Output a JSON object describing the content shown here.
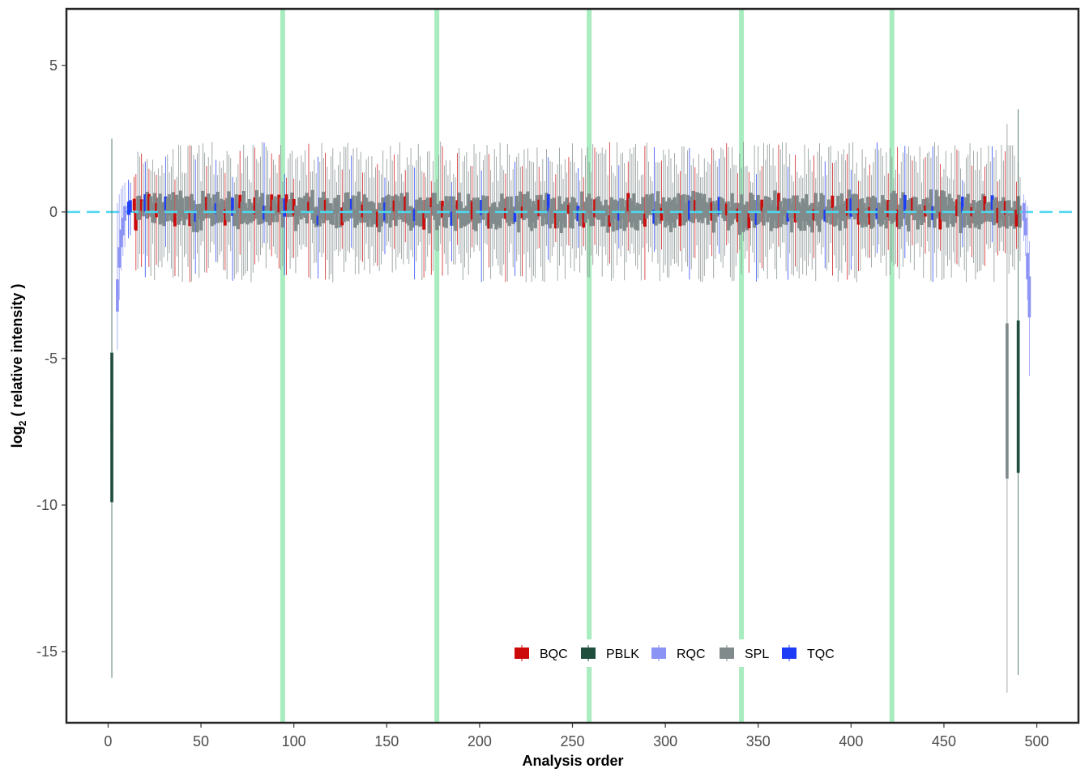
{
  "chart_data": {
    "type": "boxplot",
    "xlabel": "Analysis order",
    "ylabel_main": "log",
    "ylabel_sub": "2",
    "ylabel_rest": " ( relative intensity )",
    "xlim": [
      -22,
      522
    ],
    "ylim": [
      -17.4,
      6.9
    ],
    "x_ticks": [
      0,
      50,
      100,
      150,
      200,
      250,
      300,
      350,
      400,
      450,
      500
    ],
    "x_tick_labels": [
      "0",
      "50",
      "100",
      "150",
      "200",
      "250",
      "300",
      "350",
      "400",
      "450",
      "500"
    ],
    "y_ticks": [
      5,
      0,
      -5,
      -10,
      -15
    ],
    "y_tick_labels": [
      "5",
      "0",
      "-5",
      "-10",
      "-15"
    ],
    "reference_line_y": 0,
    "batch_boundaries_x": [
      94,
      177,
      259,
      341,
      422
    ],
    "legend": [
      {
        "label": "BQC",
        "color": "#cc0a0a"
      },
      {
        "label": "PBLK",
        "color": "#1f4e3d"
      },
      {
        "label": "RQC",
        "color": "#8b93f5"
      },
      {
        "label": "SPL",
        "color": "#808a8a"
      },
      {
        "label": "TQC",
        "color": "#1c3cf5"
      }
    ],
    "colors": {
      "BQC": "#cc0a0a",
      "PBLK": "#1f4e3d",
      "RQC": "#8b93f5",
      "SPL": "#808a8a",
      "TQC": "#1c3cf5",
      "reference_line": "#4dd8f0",
      "batch_line": "#a8ecc0",
      "panel_border": "#262626"
    },
    "special_boxes": [
      {
        "group": "PBLK",
        "x": 2,
        "lower_whisker": -15.9,
        "q1": -9.9,
        "median": -7.3,
        "q3": -4.8,
        "upper_whisker": 2.5
      },
      {
        "group": "RQC",
        "x": 5,
        "lower_whisker": -4.7,
        "q1": -3.4,
        "median": -2.8,
        "q3": -2.3,
        "upper_whisker": 0.3
      },
      {
        "group": "RQC",
        "x": 6,
        "lower_whisker": -3.0,
        "q1": -1.9,
        "median": -1.5,
        "q3": -1.2,
        "upper_whisker": 0.6
      },
      {
        "group": "RQC",
        "x": 7,
        "lower_whisker": -2.0,
        "q1": -1.2,
        "median": -0.9,
        "q3": -0.6,
        "upper_whisker": 0.8
      },
      {
        "group": "RQC",
        "x": 8,
        "lower_whisker": -1.5,
        "q1": -0.8,
        "median": -0.5,
        "q3": -0.2,
        "upper_whisker": 0.9
      },
      {
        "group": "RQC",
        "x": 9,
        "lower_whisker": -1.2,
        "q1": -0.3,
        "median": 0.0,
        "q3": 0.2,
        "upper_whisker": 1.0
      },
      {
        "group": "TQC",
        "x": 11,
        "lower_whisker": -0.9,
        "q1": -0.1,
        "median": 0.15,
        "q3": 0.35,
        "upper_whisker": 1.1
      },
      {
        "group": "TQC",
        "x": 12,
        "lower_whisker": -0.8,
        "q1": 0.0,
        "median": 0.2,
        "q3": 0.4,
        "upper_whisker": 1.0
      },
      {
        "group": "BQC",
        "x": 14,
        "lower_whisker": -0.6,
        "q1": 0.05,
        "median": 0.25,
        "q3": 0.45,
        "upper_whisker": 1.2
      },
      {
        "group": "SPL",
        "x": 484,
        "lower_whisker": -16.4,
        "q1": -9.1,
        "median": -6.5,
        "q3": -3.8,
        "upper_whisker": 3.0
      },
      {
        "group": "PBLK",
        "x": 490,
        "lower_whisker": -15.8,
        "q1": -8.9,
        "median": -6.2,
        "q3": -3.7,
        "upper_whisker": 3.5
      },
      {
        "group": "RQC",
        "x": 493,
        "lower_whisker": -1.0,
        "q1": -0.3,
        "median": 0.0,
        "q3": 0.3,
        "upper_whisker": 0.6
      },
      {
        "group": "RQC",
        "x": 494,
        "lower_whisker": -1.5,
        "q1": -0.8,
        "median": -0.5,
        "q3": -0.2,
        "upper_whisker": 0.4
      },
      {
        "group": "RQC",
        "x": 495,
        "lower_whisker": -3.0,
        "q1": -2.3,
        "median": -1.9,
        "q3": -1.4,
        "upper_whisker": 0.2
      },
      {
        "group": "RQC",
        "x": 496,
        "lower_whisker": -5.6,
        "q1": -3.6,
        "median": -3.0,
        "q3": -2.2,
        "upper_whisker": -1.0
      }
    ],
    "bulk_series": {
      "x_start": 15,
      "x_end": 491,
      "median_range": [
        -0.4,
        0.45
      ],
      "box_half_height_range": [
        0.25,
        0.55
      ],
      "whisker_low_range": [
        -2.4,
        -1.0
      ],
      "whisker_high_range": [
        1.0,
        2.4
      ],
      "bqc_positions": [
        15,
        18,
        22,
        26,
        36,
        44,
        53,
        63,
        71,
        79,
        88,
        92,
        96,
        100,
        108,
        117,
        126,
        137,
        145,
        154,
        160,
        170,
        174,
        180,
        188,
        196,
        205,
        214,
        223,
        232,
        241,
        248,
        256,
        262,
        270,
        280,
        289,
        298,
        308,
        316,
        325,
        333,
        339,
        345,
        352,
        361,
        370,
        380,
        390,
        398,
        404,
        410,
        420,
        425,
        433,
        440,
        448,
        457,
        465,
        472,
        479,
        483,
        489
      ],
      "tqc_positions": [
        20,
        31,
        47,
        58,
        67,
        84,
        95,
        113,
        131,
        149,
        165,
        185,
        201,
        219,
        237,
        253,
        275,
        294,
        313,
        329,
        349,
        366,
        386,
        400,
        414,
        429,
        444,
        460,
        476
      ]
    }
  }
}
